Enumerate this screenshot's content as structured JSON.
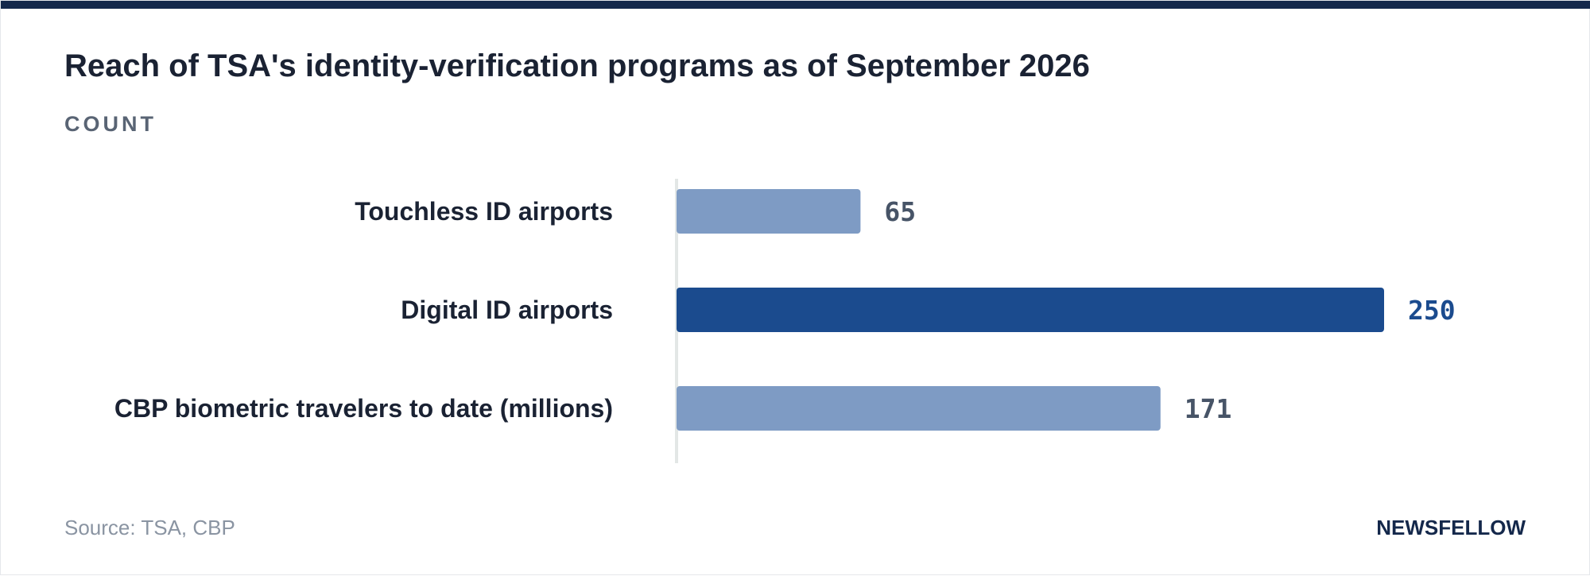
{
  "title": "Reach of TSA's identity-verification programs as of September 2026",
  "unit_label": "COUNT",
  "source": "Source: TSA, CBP",
  "brand": "NEWSFELLOW",
  "colors": {
    "bar_default": "#7e9bc4",
    "bar_highlight": "#1b4b8e",
    "label_default": "#475467",
    "label_highlight": "#1b4b8e",
    "axis": "#e3e7e6",
    "category_text": "#1a2233"
  },
  "chart_data": {
    "type": "bar",
    "orientation": "horizontal",
    "categories": [
      "Touchless ID airports",
      "Digital ID airports",
      "CBP biometric travelers to date (millions)"
    ],
    "values": [
      65,
      250,
      171
    ],
    "highlight_index": 1,
    "xlim": [
      0,
      250
    ],
    "title": "Reach of TSA's identity-verification programs as of September 2026",
    "ylabel": "COUNT",
    "grid": false,
    "legend": "none"
  }
}
